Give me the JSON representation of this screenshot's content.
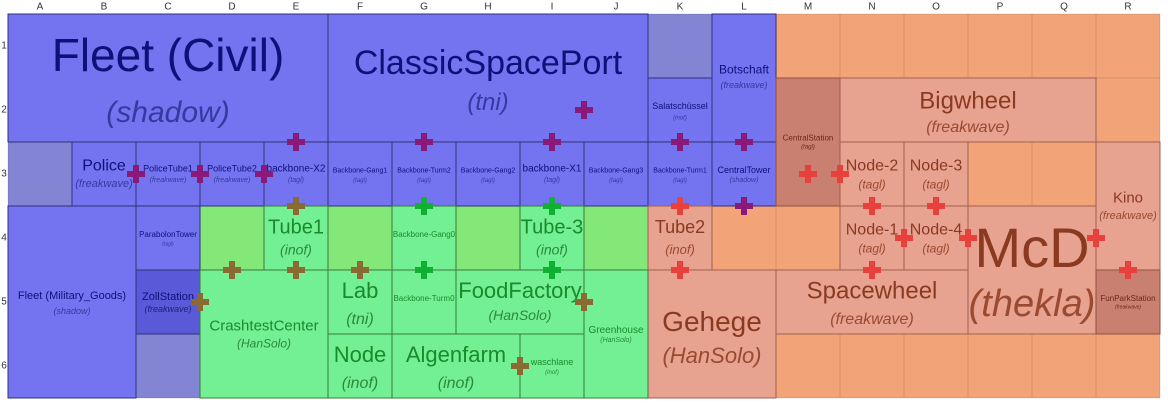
{
  "columns": [
    "A",
    "B",
    "C",
    "D",
    "E",
    "F",
    "G",
    "H",
    "I",
    "J",
    "K",
    "L",
    "M",
    "N",
    "O",
    "P",
    "Q",
    "R"
  ],
  "rows": [
    "1",
    "2",
    "3",
    "4",
    "5",
    "6"
  ],
  "regions": [
    {
      "name": "Fleet (Civil)",
      "owner": "(shadow)"
    },
    {
      "name": "ClassicSpacePort",
      "owner": "(tni)"
    },
    {
      "name": "Salatschüssel",
      "owner": "(inof)"
    },
    {
      "name": "Botschaft",
      "owner": "(freakwave)"
    },
    {
      "name": "Police",
      "owner": "(freakwave)"
    },
    {
      "name": "PoliceTube1",
      "owner": "(freakwave)"
    },
    {
      "name": "PoliceTube2",
      "owner": "(freakwave)"
    },
    {
      "name": "backbone-X2",
      "owner": "(tagl)"
    },
    {
      "name": "Backbone-Gang1",
      "owner": "(tagl)"
    },
    {
      "name": "Backbone-Turm2",
      "owner": "(tagl)"
    },
    {
      "name": "Backbone-Gang2",
      "owner": "(tagl)"
    },
    {
      "name": "backbone-X1",
      "owner": "(tagl)"
    },
    {
      "name": "Backbone-Gang3",
      "owner": "(tagl)"
    },
    {
      "name": "Backbone-Turm1",
      "owner": "(tagl)"
    },
    {
      "name": "CentralTower",
      "owner": "(shadow)"
    },
    {
      "name": "CentralStation",
      "owner": "(tagl)"
    },
    {
      "name": "Bigwheel",
      "owner": "(freakwave)"
    },
    {
      "name": "Node-2",
      "owner": "(tagl)"
    },
    {
      "name": "Node-3",
      "owner": "(tagl)"
    },
    {
      "name": "Node-1",
      "owner": "(tagl)"
    },
    {
      "name": "Node-4",
      "owner": "(tagl)"
    },
    {
      "name": "Kino",
      "owner": "(freakwave)"
    },
    {
      "name": "McD",
      "owner": "(thekla)"
    },
    {
      "name": "FunParkStation",
      "owner": "(freakwave)"
    },
    {
      "name": "Spacewheel",
      "owner": "(freakwave)"
    },
    {
      "name": "Gehege",
      "owner": "(HanSolo)"
    },
    {
      "name": "Tube2",
      "owner": "(inof)"
    },
    {
      "name": "Fleet (Military_Goods)",
      "owner": "(shadow)"
    },
    {
      "name": "ParabolonTower",
      "owner": "(tagl)"
    },
    {
      "name": "ZollStation",
      "owner": "(freakwave)"
    },
    {
      "name": "Tube1",
      "owner": "(inof)"
    },
    {
      "name": "Backbone-Gang0"
    },
    {
      "name": "Tube-3",
      "owner": "(inof)"
    },
    {
      "name": "CrashtestCenter",
      "owner": "(HanSolo)"
    },
    {
      "name": "Lab",
      "owner": "(tni)"
    },
    {
      "name": "Backbone-Turm0"
    },
    {
      "name": "FoodFactory",
      "owner": "(HanSolo)"
    },
    {
      "name": "Greenhouse",
      "owner": "(HanSolo)"
    },
    {
      "name": "Node",
      "owner": "(inof)"
    },
    {
      "name": "Algenfarm",
      "owner": "(inof)"
    },
    {
      "name": "waschlane",
      "owner": "(inof)"
    }
  ]
}
